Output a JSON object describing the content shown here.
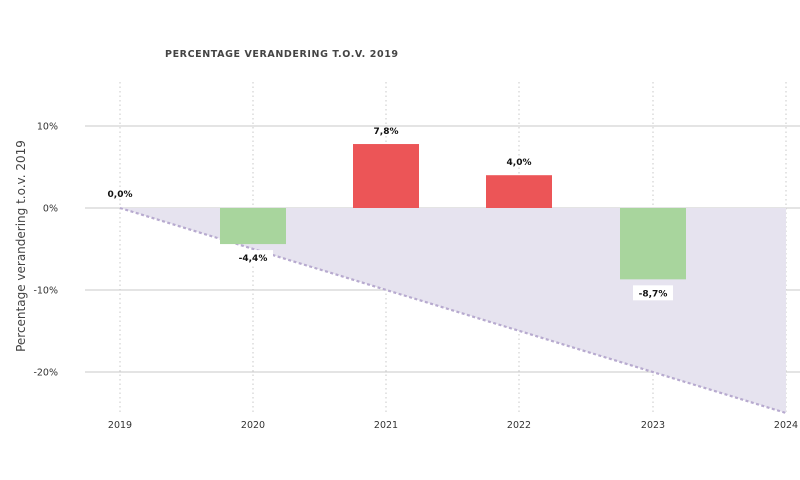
{
  "chart_data": {
    "type": "bar",
    "title": "PERCENTAGE VERANDERING T.O.V. 2019",
    "xlabel": "",
    "ylabel": "Percentage verandering t.o.v. 2019",
    "x_ticks": [
      "2019",
      "2020",
      "2021",
      "2022",
      "2023",
      "2024"
    ],
    "y_ticks": [
      "10%",
      "0%",
      "-10%",
      "-20%"
    ],
    "y_tick_values": [
      10,
      0,
      -10,
      -20
    ],
    "ylim": [
      -25,
      15
    ],
    "grid": true,
    "series": [
      {
        "values": [
          0.0,
          -4.4,
          7.8,
          4.0,
          -8.7
        ],
        "labels": [
          "0,0%",
          "-4,4%",
          "7,8%",
          "4,0%",
          "-8,7%"
        ],
        "categories": [
          "2019",
          "2020",
          "2021",
          "2022",
          "2023"
        ]
      }
    ],
    "reference_line": {
      "style": "dashed",
      "x": [
        "2019",
        "2024"
      ],
      "y": [
        0,
        -25
      ]
    },
    "colors": {
      "positive": "#ec5557",
      "negative": "#a8d59d",
      "reference_fill": "#e6e3ef",
      "reference_line": "#b7aacf",
      "grid": "#c8c8c8"
    }
  }
}
